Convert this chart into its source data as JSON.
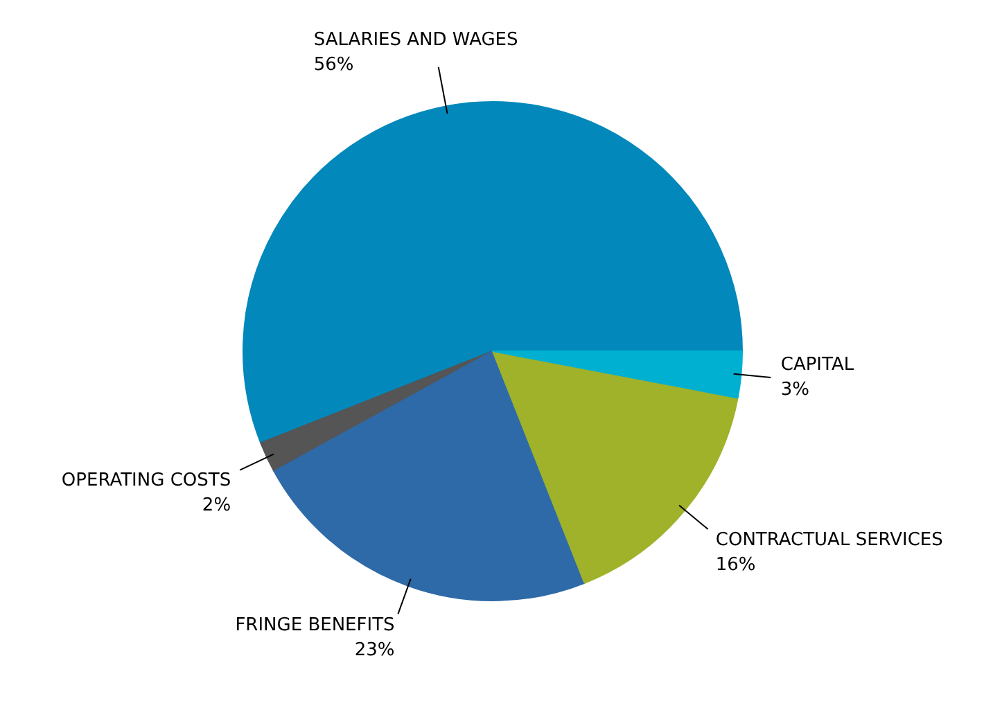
{
  "chart_data": {
    "type": "pie",
    "categories": [
      "SALARIES AND WAGES",
      "OPERATING COSTS",
      "FRINGE BENEFITS",
      "CONTRACTUAL SERVICES",
      "CAPITAL"
    ],
    "values": [
      56,
      2,
      23,
      16,
      3
    ],
    "colors": [
      "#0288bb",
      "#555555",
      "#2e6aa8",
      "#a0b22a",
      "#00b0d0"
    ],
    "value_labels": [
      "56%",
      "2%",
      "23%",
      "16%",
      "3%"
    ]
  }
}
